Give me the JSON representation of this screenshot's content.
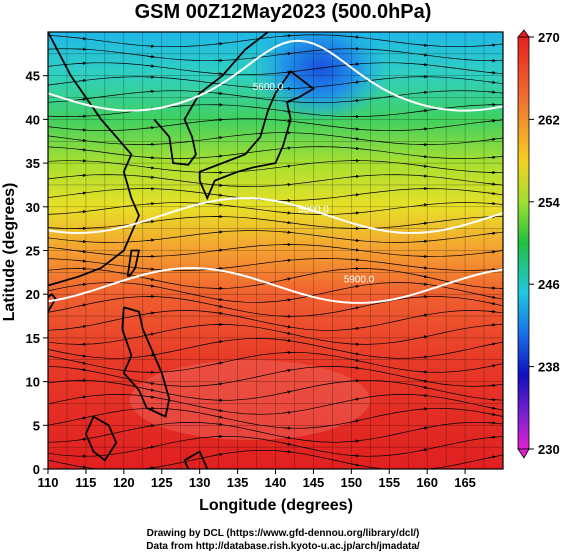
{
  "title": "GSM 00Z12May2023 (500.0hPa)",
  "x_axis": {
    "label": "Longitude (degrees)",
    "ticks": [
      "110",
      "115",
      "120",
      "125",
      "130",
      "135",
      "140",
      "145",
      "150",
      "155",
      "160",
      "165"
    ],
    "range": [
      110,
      170
    ]
  },
  "y_axis": {
    "label": "Latitude (degrees)",
    "ticks": [
      "0",
      "5",
      "10",
      "15",
      "20",
      "25",
      "30",
      "35",
      "40",
      "45"
    ],
    "range": [
      0,
      50
    ]
  },
  "colorbar": {
    "labels": [
      "270",
      "262",
      "254",
      "246",
      "238",
      "230"
    ],
    "colors": [
      "#e8202a",
      "#f08030",
      "#f5d020",
      "#a8e030",
      "#20c040",
      "#20c8e0",
      "#1860e8",
      "#1010c0",
      "#8020d0",
      "#e020d0"
    ]
  },
  "contours": [
    {
      "label": "5600.0",
      "lat": 43
    },
    {
      "label": "5800.0",
      "lat": 29
    },
    {
      "label": "5900.0",
      "lat": 21
    }
  ],
  "credits": {
    "line1": "Drawing by DCL (https://www.gfd-dennou.org/library/dcl/)",
    "line2": "Data from http://database.rish.kyoto-u.ac.jp/arch/jmadata/"
  },
  "colors": {
    "warm": "#e83a28",
    "mid": "#f0e020",
    "cold": "#2080e8",
    "streamline": "#000000",
    "contour": "#ffffff",
    "coastline": "#000000"
  }
}
